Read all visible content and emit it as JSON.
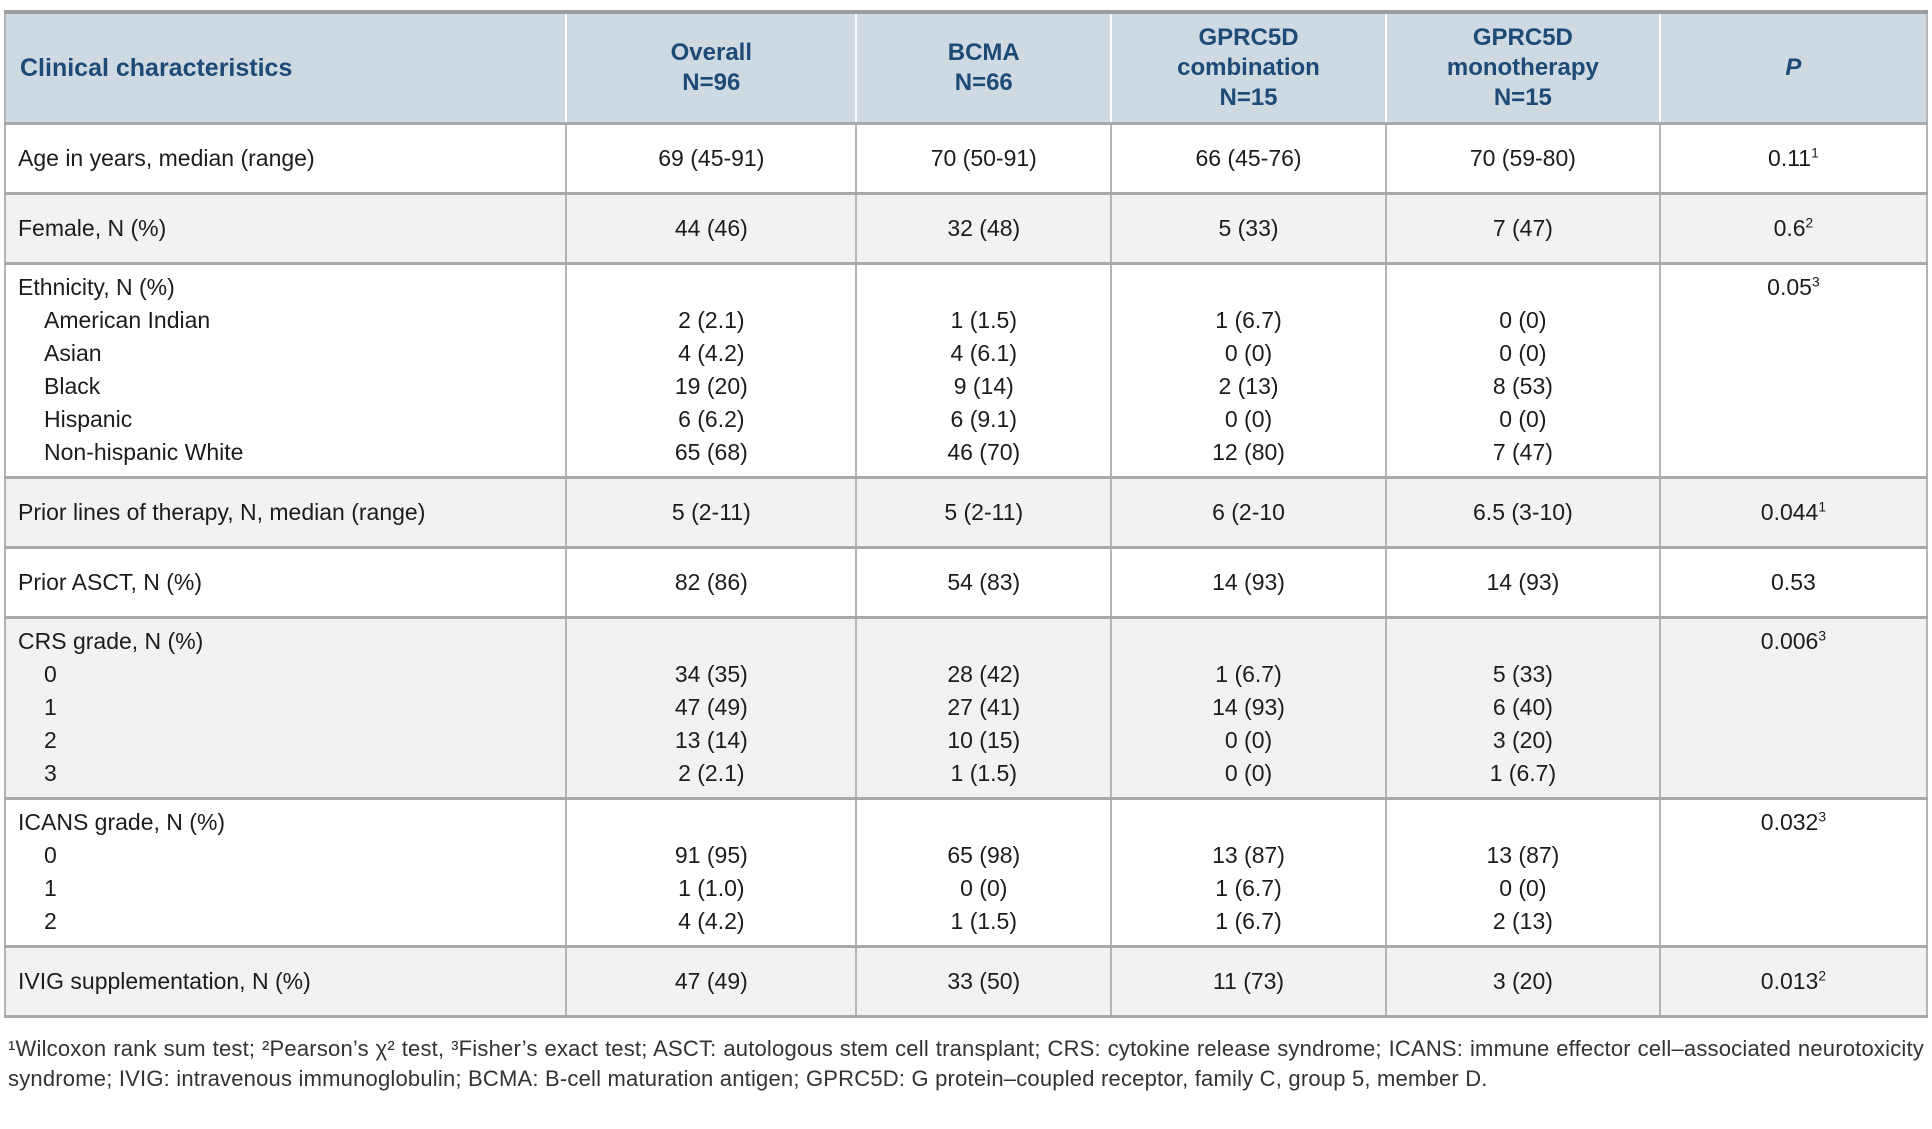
{
  "header": {
    "label_col": "Clinical characteristics",
    "columns": [
      {
        "lines": [
          "Overall",
          "N=96"
        ],
        "italic": false
      },
      {
        "lines": [
          "BCMA",
          "N=66"
        ],
        "italic": false
      },
      {
        "lines": [
          "GPRC5D",
          "combination",
          "N=15"
        ],
        "italic": false
      },
      {
        "lines": [
          "GPRC5D",
          "monotherapy",
          "N=15"
        ],
        "italic": false
      },
      {
        "lines": [
          "P"
        ],
        "italic": true
      }
    ]
  },
  "rows": [
    {
      "label": "Age in years, median (range)",
      "sub_labels": [],
      "values": {
        "overall": [
          "69 (45-91)"
        ],
        "bcma": [
          "70 (50-91)"
        ],
        "gprc5d_combination": [
          "66 (45-76)"
        ],
        "gprc5d_monotherapy": [
          "70 (59-80)"
        ]
      },
      "p": "0.11",
      "p_sup": "1",
      "shaded": false
    },
    {
      "label": "Female, N (%)",
      "sub_labels": [],
      "values": {
        "overall": [
          "44 (46)"
        ],
        "bcma": [
          "32 (48)"
        ],
        "gprc5d_combination": [
          "5 (33)"
        ],
        "gprc5d_monotherapy": [
          "7 (47)"
        ]
      },
      "p": "0.6",
      "p_sup": "2",
      "shaded": true
    },
    {
      "label": "Ethnicity, N (%)",
      "sub_labels": [
        "American Indian",
        "Asian",
        "Black",
        "Hispanic",
        "Non-hispanic White"
      ],
      "values": {
        "overall": [
          "2 (2.1)",
          "4 (4.2)",
          "19 (20)",
          "6 (6.2)",
          "65 (68)"
        ],
        "bcma": [
          "1 (1.5)",
          "4 (6.1)",
          "9 (14)",
          "6 (9.1)",
          "46 (70)"
        ],
        "gprc5d_combination": [
          "1 (6.7)",
          "0 (0)",
          "2 (13)",
          "0 (0)",
          "12 (80)"
        ],
        "gprc5d_monotherapy": [
          "0 (0)",
          "0 (0)",
          "8 (53)",
          "0 (0)",
          "7 (47)"
        ]
      },
      "p": "0.05",
      "p_sup": "3",
      "shaded": false
    },
    {
      "label": "Prior lines of therapy, N, median (range)",
      "sub_labels": [],
      "values": {
        "overall": [
          "5 (2-11)"
        ],
        "bcma": [
          "5 (2-11)"
        ],
        "gprc5d_combination": [
          "6 (2-10"
        ],
        "gprc5d_monotherapy": [
          "6.5 (3-10)"
        ]
      },
      "p": "0.044",
      "p_sup": "1",
      "shaded": true
    },
    {
      "label": "Prior ASCT, N (%)",
      "sub_labels": [],
      "values": {
        "overall": [
          "82 (86)"
        ],
        "bcma": [
          "54 (83)"
        ],
        "gprc5d_combination": [
          "14 (93)"
        ],
        "gprc5d_monotherapy": [
          "14 (93)"
        ]
      },
      "p": "0.53",
      "p_sup": "",
      "shaded": false
    },
    {
      "label": "CRS grade, N (%)",
      "sub_labels": [
        "0",
        "1",
        "2",
        "3"
      ],
      "values": {
        "overall": [
          "34 (35)",
          "47 (49)",
          "13 (14)",
          "2 (2.1)"
        ],
        "bcma": [
          "28 (42)",
          "27 (41)",
          "10 (15)",
          "1 (1.5)"
        ],
        "gprc5d_combination": [
          "1 (6.7)",
          "14 (93)",
          "0 (0)",
          "0 (0)"
        ],
        "gprc5d_monotherapy": [
          "5 (33)",
          "6 (40)",
          "3 (20)",
          "1 (6.7)"
        ]
      },
      "p": "0.006",
      "p_sup": "3",
      "shaded": true
    },
    {
      "label": "ICANS grade, N (%)",
      "sub_labels": [
        "0",
        "1",
        "2"
      ],
      "values": {
        "overall": [
          "91 (95)",
          "1 (1.0)",
          "4 (4.2)"
        ],
        "bcma": [
          "65 (98)",
          "0 (0)",
          "1 (1.5)"
        ],
        "gprc5d_combination": [
          "13 (87)",
          "1 (6.7)",
          "1 (6.7)"
        ],
        "gprc5d_monotherapy": [
          "13 (87)",
          "0 (0)",
          "2 (13)"
        ]
      },
      "p": "0.032",
      "p_sup": "3",
      "shaded": false
    },
    {
      "label": "IVIG supplementation, N (%)",
      "sub_labels": [],
      "values": {
        "overall": [
          "47 (49)"
        ],
        "bcma": [
          "33 (50)"
        ],
        "gprc5d_combination": [
          "11 (73)"
        ],
        "gprc5d_monotherapy": [
          "3 (20)"
        ]
      },
      "p": "0.013",
      "p_sup": "2",
      "shaded": true
    }
  ],
  "colors": {
    "header_bg": "#cfd9e2",
    "header_text": "#1d4a76",
    "row_shade": "#f2f2f2",
    "group_border": "#a9a9a9",
    "column_divider": "#b4b4b4",
    "body_text": "#1c1c1c"
  },
  "footnote": "¹Wilcoxon rank sum test; ²Pearson’s χ² test, ³Fisher’s exact test; ASCT: autologous stem cell transplant; CRS: cytokine release syndrome; ICANS: immune effector cell–associated neurotoxicity syndrome; IVIG: intravenous immunoglobulin; BCMA: B-cell maturation antigen; GPRC5D: G protein–coupled receptor, family C, group 5, member D."
}
